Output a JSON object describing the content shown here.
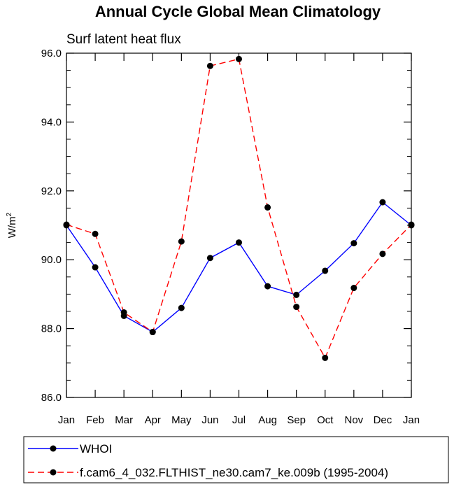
{
  "chart_data": {
    "type": "line",
    "title": "Annual Cycle Global Mean Climatology",
    "subtitle": "Surf latent heat flux",
    "ylabel": "W/m",
    "ylabel_sup": "2",
    "xlabel": "",
    "categories": [
      "Jan",
      "Feb",
      "Mar",
      "Apr",
      "May",
      "Jun",
      "Jul",
      "Aug",
      "Sep",
      "Oct",
      "Nov",
      "Dec",
      "Jan"
    ],
    "ylim": [
      86.0,
      96.0
    ],
    "yticks": [
      86.0,
      88.0,
      90.0,
      92.0,
      94.0,
      96.0
    ],
    "ytick_labels": [
      "86.0",
      "88.0",
      "90.0",
      "92.0",
      "94.0",
      "96.0"
    ],
    "y_minor_step": 0.5,
    "grid": false,
    "legend_position": "bottom",
    "series": [
      {
        "name": "WHOI",
        "color": "#0000ff",
        "dash": "solid",
        "values": [
          91.0,
          89.78,
          88.37,
          87.9,
          88.6,
          90.05,
          90.5,
          89.23,
          88.98,
          89.68,
          90.48,
          91.67,
          91.0
        ]
      },
      {
        "name": "f.cam6_4_032.FLTHIST_ne30.cam7_ke.009b (1995-2004)",
        "color": "#ff0000",
        "dash": "dashed",
        "values": [
          91.02,
          90.75,
          88.47,
          87.9,
          90.53,
          95.63,
          95.83,
          91.52,
          88.63,
          87.15,
          89.18,
          90.17,
          91.02
        ]
      }
    ]
  }
}
